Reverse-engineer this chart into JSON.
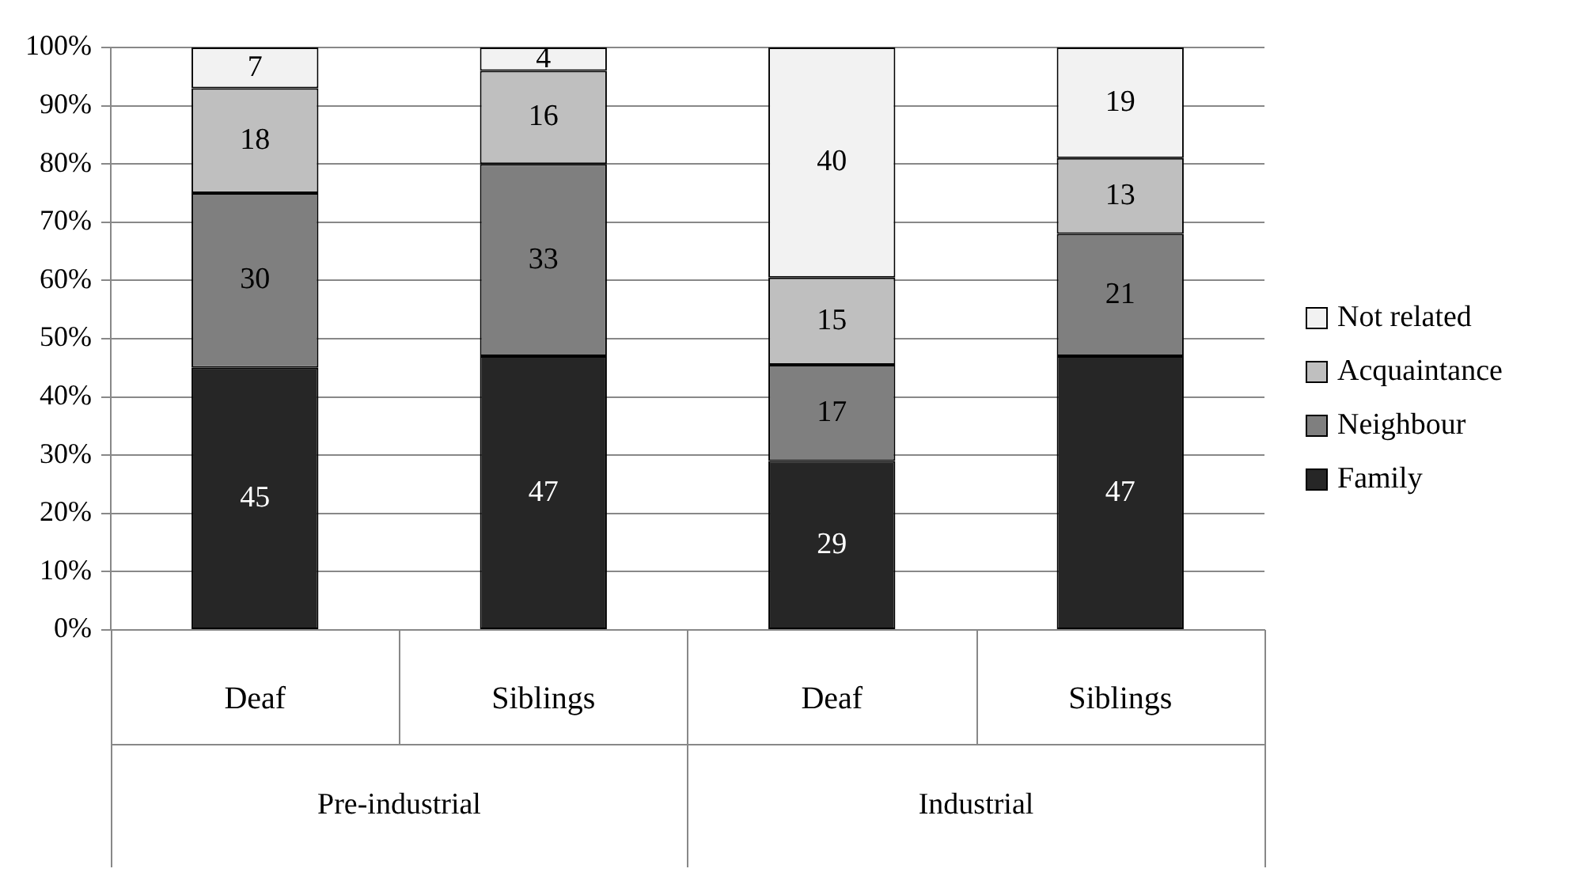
{
  "chart_data": {
    "type": "bar",
    "stacked": true,
    "categories": [
      "Deaf",
      "Siblings",
      "Deaf",
      "Siblings"
    ],
    "series": [
      {
        "name": "Family",
        "color": "#262626",
        "values": [
          45,
          47,
          29,
          47
        ]
      },
      {
        "name": "Neighbour",
        "color": "#7f7f7f",
        "values": [
          30,
          33,
          16.5,
          21
        ],
        "value_labels": [
          "30",
          "33",
          "17",
          "21"
        ]
      },
      {
        "name": "Acquaintance",
        "color": "#bfbfbf",
        "values": [
          18,
          16,
          15,
          13
        ]
      },
      {
        "name": "Not related",
        "color": "#f2f2f2",
        "values": [
          7,
          4,
          39.5,
          19
        ],
        "value_labels": [
          "7",
          "4",
          "40",
          "19"
        ]
      }
    ],
    "ylim": [
      0,
      100
    ],
    "yticks": [
      {
        "value": 0,
        "label": "0%"
      },
      {
        "value": 10,
        "label": "10%"
      },
      {
        "value": 20,
        "label": "20%"
      },
      {
        "value": 30,
        "label": "30%"
      },
      {
        "value": 40,
        "label": "40%"
      },
      {
        "value": 50,
        "label": "50%"
      },
      {
        "value": 60,
        "label": "60%"
      },
      {
        "value": 70,
        "label": "70%"
      },
      {
        "value": 80,
        "label": "80%"
      },
      {
        "value": 90,
        "label": "90%"
      },
      {
        "value": 100,
        "label": "100%"
      }
    ],
    "grid": "y",
    "legend": "right",
    "data_labels": true,
    "annotations": [
      "Pre-industrial",
      "Industrial"
    ]
  }
}
